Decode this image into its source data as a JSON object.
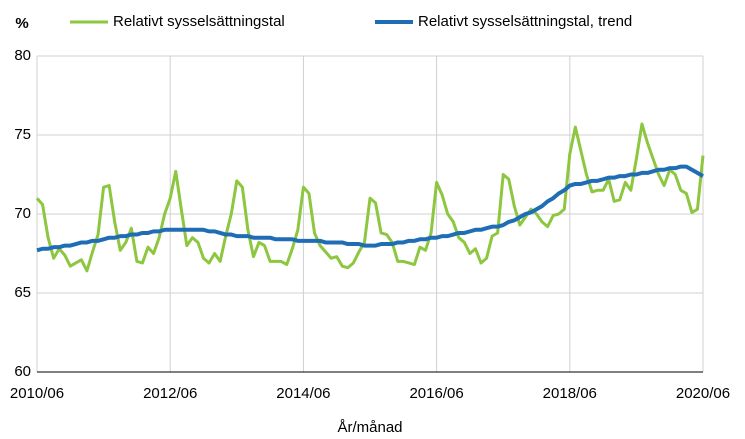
{
  "chart_data": {
    "type": "line",
    "y_label": "%",
    "x_label": "År/månad",
    "categories": [
      "2010/06",
      null,
      null,
      null,
      null,
      null,
      null,
      null,
      null,
      null,
      null,
      null,
      null,
      null,
      null,
      null,
      null,
      null,
      null,
      null,
      null,
      null,
      null,
      null,
      "2012/06",
      null,
      null,
      null,
      null,
      null,
      null,
      null,
      null,
      null,
      null,
      null,
      null,
      null,
      null,
      null,
      null,
      null,
      null,
      null,
      null,
      null,
      null,
      null,
      "2014/06",
      null,
      null,
      null,
      null,
      null,
      null,
      null,
      null,
      null,
      null,
      null,
      null,
      null,
      null,
      null,
      null,
      null,
      null,
      null,
      null,
      null,
      null,
      null,
      "2016/06",
      null,
      null,
      null,
      null,
      null,
      null,
      null,
      null,
      null,
      null,
      null,
      null,
      null,
      null,
      null,
      null,
      null,
      null,
      null,
      null,
      null,
      null,
      null,
      "2018/06",
      null,
      null,
      null,
      null,
      null,
      null,
      null,
      null,
      null,
      null,
      null,
      null,
      null,
      null,
      null,
      null,
      null,
      null,
      null,
      null,
      null,
      null,
      null,
      "2020/06"
    ],
    "series": [
      {
        "name": "Relativt sysselsättningstal",
        "color": "#8dc63f",
        "values": [
          71.0,
          70.6,
          68.5,
          67.2,
          67.8,
          67.4,
          66.7,
          66.9,
          67.1,
          66.4,
          67.6,
          68.7,
          71.7,
          71.8,
          69.5,
          67.7,
          68.2,
          69.1,
          67.0,
          66.9,
          67.9,
          67.5,
          68.5,
          70.0,
          71.0,
          72.7,
          70.3,
          68.0,
          68.5,
          68.2,
          67.2,
          66.9,
          67.5,
          67.0,
          68.6,
          70.0,
          72.1,
          71.7,
          69.0,
          67.3,
          68.2,
          68.0,
          67.0,
          67.0,
          67.0,
          66.8,
          67.8,
          69.0,
          71.7,
          71.3,
          68.8,
          68.0,
          67.6,
          67.2,
          67.3,
          66.7,
          66.6,
          66.9,
          67.6,
          68.2,
          71.0,
          70.7,
          68.8,
          68.7,
          68.2,
          67.0,
          67.0,
          66.9,
          66.8,
          67.9,
          67.7,
          68.8,
          72.0,
          71.2,
          70.0,
          69.5,
          68.5,
          68.2,
          67.5,
          67.8,
          66.9,
          67.2,
          68.6,
          68.8,
          72.5,
          72.2,
          70.5,
          69.3,
          69.8,
          70.3,
          70.0,
          69.5,
          69.2,
          69.9,
          70.0,
          70.3,
          73.8,
          75.5,
          74.0,
          72.5,
          71.4,
          71.5,
          71.5,
          72.2,
          70.8,
          70.9,
          72.0,
          71.5,
          73.5,
          75.7,
          74.5,
          73.5,
          72.5,
          71.8,
          72.8,
          72.5,
          71.5,
          71.3,
          70.1,
          70.3,
          73.7
        ]
      },
      {
        "name": "Relativt sysselsättningstal, trend",
        "color": "#1f6eb5",
        "values": [
          67.7,
          67.8,
          67.8,
          67.9,
          67.9,
          68.0,
          68.0,
          68.1,
          68.2,
          68.2,
          68.3,
          68.3,
          68.4,
          68.5,
          68.5,
          68.6,
          68.6,
          68.7,
          68.7,
          68.8,
          68.8,
          68.9,
          68.9,
          69.0,
          69.0,
          69.0,
          69.0,
          69.0,
          69.0,
          69.0,
          69.0,
          68.9,
          68.9,
          68.8,
          68.7,
          68.7,
          68.6,
          68.6,
          68.6,
          68.5,
          68.5,
          68.5,
          68.5,
          68.4,
          68.4,
          68.4,
          68.4,
          68.3,
          68.3,
          68.3,
          68.3,
          68.3,
          68.2,
          68.2,
          68.2,
          68.2,
          68.1,
          68.1,
          68.1,
          68.0,
          68.0,
          68.0,
          68.1,
          68.1,
          68.1,
          68.2,
          68.2,
          68.3,
          68.3,
          68.4,
          68.4,
          68.5,
          68.5,
          68.6,
          68.6,
          68.7,
          68.8,
          68.8,
          68.9,
          69.0,
          69.0,
          69.1,
          69.2,
          69.2,
          69.3,
          69.5,
          69.6,
          69.8,
          70.0,
          70.1,
          70.3,
          70.5,
          70.8,
          71.0,
          71.3,
          71.5,
          71.8,
          71.9,
          71.9,
          72.0,
          72.1,
          72.1,
          72.2,
          72.3,
          72.3,
          72.4,
          72.4,
          72.5,
          72.5,
          72.6,
          72.6,
          72.7,
          72.8,
          72.8,
          72.9,
          72.9,
          73.0,
          73.0,
          72.8,
          72.6,
          72.4
        ]
      }
    ],
    "ylim": [
      60,
      80
    ],
    "yticks": [
      60,
      65,
      70,
      75,
      80
    ],
    "grid": true
  }
}
